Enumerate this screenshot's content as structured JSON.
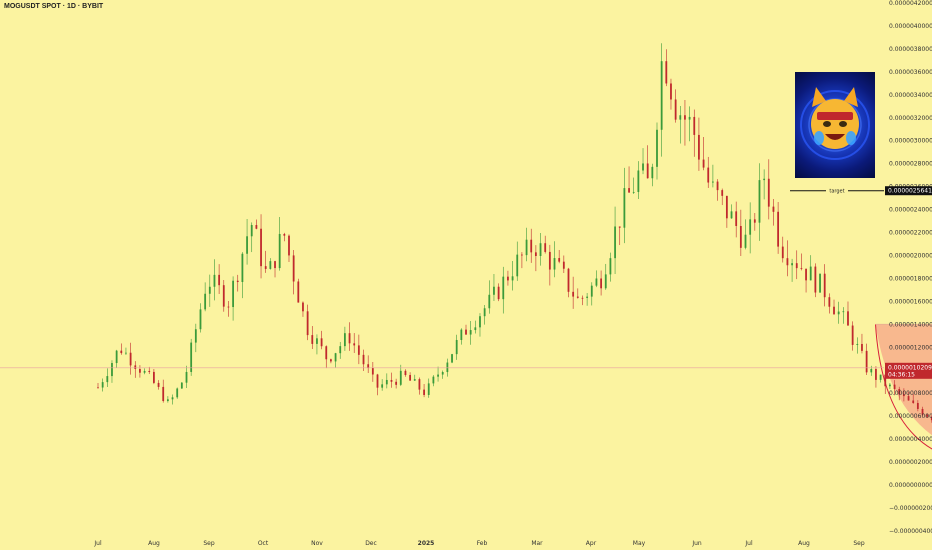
{
  "header": {
    "symbol_title": "MOGUSDT SPOT · 1D · BYBIT"
  },
  "chart_data": {
    "type": "candlestick",
    "title": "MOGUSDT SPOT · 1D · BYBIT",
    "x_tick_labels": [
      "Jul",
      "Aug",
      "Sep",
      "Oct",
      "Nov",
      "Dec",
      "2025",
      "Feb",
      "Mar",
      "Apr",
      "May",
      "Jun",
      "Jul",
      "Aug",
      "Sep"
    ],
    "y_tick_labels": [
      "0.0000042000",
      "0.0000040000",
      "0.0000038000",
      "0.0000036000",
      "0.0000034000",
      "0.0000032000",
      "0.0000030000",
      "0.0000028000",
      "0.0000026000",
      "0.0000024000",
      "0.0000022000",
      "0.0000020000",
      "0.0000018000",
      "0.0000016000",
      "0.0000014000",
      "0.0000012000",
      "0.0000010000",
      "0.0000008000",
      "0.0000006000",
      "0.0000004000",
      "0.0000002000",
      "0.0000000000",
      "−0.0000002000",
      "−0.0000004000"
    ],
    "ylim": [
      -4e-07,
      4.2e-06
    ],
    "price_path": [
      [
        6,
        8.5e-07
      ],
      [
        6.4,
        1.2e-06
      ],
      [
        7,
        9e-07
      ],
      [
        7.3,
        7e-07
      ],
      [
        7.6,
        9.5e-07
      ],
      [
        8,
        1.8e-06
      ],
      [
        8.4,
        1.6e-06
      ],
      [
        8.8,
        2.3e-06
      ],
      [
        9.1,
        1.8e-06
      ],
      [
        9.4,
        2.2e-06
      ],
      [
        9.8,
        1.4e-06
      ],
      [
        10.2,
        1.1e-06
      ],
      [
        10.6,
        1.3e-06
      ],
      [
        11.1,
        8.5e-07
      ],
      [
        11.6,
        9.5e-07
      ],
      [
        12,
        8e-07
      ],
      [
        12.4,
        1.1e-06
      ],
      [
        12.8,
        1.4e-06
      ],
      [
        13.2,
        1.6e-06
      ],
      [
        13.6,
        1.9e-06
      ],
      [
        14,
        2.1e-06
      ],
      [
        14.4,
        1.9e-06
      ],
      [
        14.8,
        1.6e-06
      ],
      [
        15.2,
        1.8e-06
      ],
      [
        15.6,
        2.4e-06
      ],
      [
        15.9,
        2.7e-06
      ],
      [
        16.1,
        2.6e-06
      ],
      [
        16.35,
        3.8e-06
      ],
      [
        16.6,
        3.3e-06
      ],
      [
        16.9,
        3.1e-06
      ],
      [
        17.2,
        2.6e-06
      ],
      [
        17.5,
        2.4e-06
      ],
      [
        17.9,
        2.1e-06
      ],
      [
        18.2,
        2.7e-06
      ],
      [
        18.5,
        2.1e-06
      ],
      [
        18.9,
        1.9e-06
      ],
      [
        19.3,
        1.7e-06
      ],
      [
        19.7,
        1.4e-06
      ],
      [
        20.1,
        1e-06
      ],
      [
        20.5,
        8.5e-07
      ],
      [
        20.9,
        7e-07
      ],
      [
        21.3,
        5.8e-07
      ],
      [
        21.7,
        4.8e-07
      ],
      [
        22.1,
        4.5e-07
      ],
      [
        22.5,
        5e-07
      ],
      [
        22.9,
        3.8e-07
      ],
      [
        23.2,
        3.3e-07
      ],
      [
        23.5,
        4.5e-07
      ],
      [
        23.8,
        5.5e-07
      ],
      [
        24.2,
        7e-07
      ],
      [
        24.6,
        8.5e-07
      ],
      [
        24.9,
        1.2e-06
      ],
      [
        25.2,
        1.1e-06
      ],
      [
        25.5,
        1.3e-06
      ],
      [
        25.8,
        1.1e-06
      ],
      [
        26.1,
        9.5e-07
      ],
      [
        26.4,
        8.5e-07
      ],
      [
        26.8,
        1e-06
      ],
      [
        27.1,
        8e-07
      ],
      [
        27.4,
        7.5e-07
      ],
      [
        27.8,
        9e-07
      ],
      [
        28.1,
        1.03e-06
      ]
    ],
    "last_price": "0.0000010209",
    "countdown": "04:36:15",
    "target_price": "0.0000025641",
    "target_label": "target",
    "pattern": {
      "resistance": 1.4e-06,
      "cup": {
        "from": 20.3,
        "to": 24.9,
        "bottom": 2.3e-07
      },
      "handle": {
        "from": 24.9,
        "to": 28.5,
        "bottom": 5.8e-07
      }
    }
  },
  "colors": {
    "background": "#fbf3a0",
    "up": "#3a9a3a",
    "down": "#c0282d",
    "pattern_fill": "#f7a98a",
    "pattern_stroke": "#d8203a",
    "price_tag": "#c0282d",
    "target_tag": "#111111"
  }
}
